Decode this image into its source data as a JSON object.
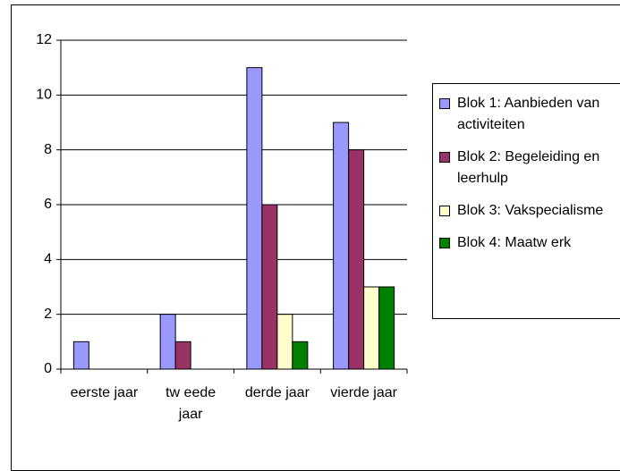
{
  "chart_data": {
    "type": "bar",
    "categories": [
      "eerste jaar",
      "tw eede jaar",
      "derde jaar",
      "vierde jaar"
    ],
    "series": [
      {
        "name": "Blok 1: Aanbieden van activiteiten",
        "color": "#9999ff",
        "values": [
          1,
          2,
          11,
          9
        ]
      },
      {
        "name": "Blok 2: Begeleiding en leerhulp",
        "color": "#993366",
        "values": [
          0,
          1,
          6,
          8
        ]
      },
      {
        "name": "Blok 3: Vakspecialisme",
        "color": "#ffffcc",
        "values": [
          0,
          0,
          2,
          3
        ]
      },
      {
        "name": "Blok 4: Maatw erk",
        "color": "#008000",
        "values": [
          0,
          0,
          1,
          3
        ]
      }
    ],
    "ylim": [
      0,
      12
    ],
    "yticks": [
      0,
      2,
      4,
      6,
      8,
      10,
      12
    ],
    "grid": true,
    "legend": "right"
  }
}
